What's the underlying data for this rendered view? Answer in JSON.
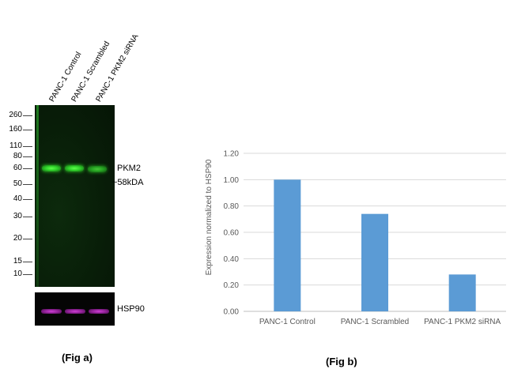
{
  "fig_a": {
    "lanes": [
      "PANC-1 Control",
      "PANC-1 Scrambled",
      "PANC-1 PKM2 siRNA"
    ],
    "markers": [
      "260",
      "160",
      "110",
      "80",
      "60",
      "50",
      "40",
      "30",
      "20",
      "15",
      "10"
    ],
    "band_label": "PKM2",
    "size_label": "~58kDA",
    "loading_label": "HSP90",
    "band_intensity": [
      1.0,
      0.74,
      0.28
    ],
    "caption": "(Fig a)"
  },
  "chart_data": {
    "type": "bar",
    "categories": [
      "PANC-1 Control",
      "PANC-1 Scrambled",
      "PANC-1 PKM2 siRNA"
    ],
    "values": [
      1.0,
      0.74,
      0.28
    ],
    "ylabel": "Expression normalized to HSP90",
    "xlabel": "",
    "ylim": [
      0,
      1.2
    ],
    "yticks": [
      "0.00",
      "0.20",
      "0.40",
      "0.60",
      "0.80",
      "1.00",
      "1.20"
    ],
    "grid": true,
    "bar_color": "#5b9bd5",
    "caption": "(Fig b)"
  }
}
